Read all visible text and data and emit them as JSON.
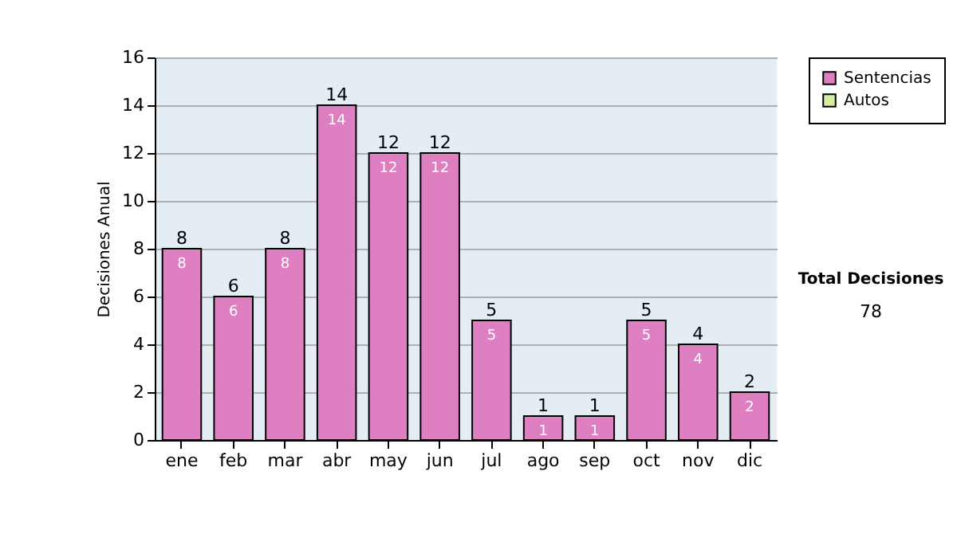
{
  "chart_data": {
    "type": "bar",
    "ylabel": "Decisiones Anual",
    "categories": [
      "ene",
      "feb",
      "mar",
      "abr",
      "may",
      "jun",
      "jul",
      "ago",
      "sep",
      "oct",
      "nov",
      "dic"
    ],
    "series": [
      {
        "name": "Sentencias",
        "color": "#dd7fc0",
        "values": [
          8,
          6,
          8,
          14,
          12,
          12,
          5,
          1,
          1,
          5,
          4,
          2
        ]
      },
      {
        "name": "Autos",
        "color": "#d6f0a0",
        "values": [
          null,
          null,
          null,
          null,
          null,
          null,
          null,
          null,
          null,
          null,
          null,
          null
        ]
      }
    ],
    "data_labels": true,
    "totals": [
      "8",
      "6",
      "8",
      "14",
      "12",
      "12",
      "5",
      "1",
      "1",
      "5",
      "4",
      "2"
    ],
    "ylim": [
      0,
      16
    ],
    "yticks": [
      0,
      2,
      4,
      6,
      8,
      10,
      12,
      14,
      16
    ],
    "grid": "y",
    "legend": "right",
    "annotations": [
      "Total Decisiones",
      "78"
    ]
  }
}
